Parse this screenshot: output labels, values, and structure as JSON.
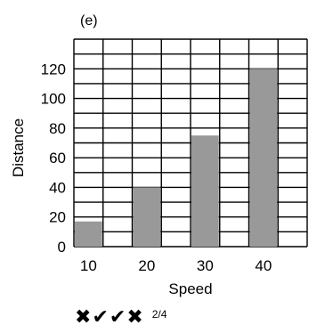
{
  "panel_label": "(e)",
  "chart_data": {
    "type": "bar",
    "categories": [
      "10",
      "20",
      "30",
      "40",
      ""
    ],
    "values": [
      17,
      40,
      75,
      120,
      null
    ],
    "xlabel": "Speed",
    "ylabel": "Distance",
    "ylim": [
      0,
      140
    ],
    "yticks": [
      0,
      20,
      40,
      60,
      80,
      100,
      120
    ],
    "bar_color": "#999999",
    "grid": true
  },
  "feedback": {
    "marks": [
      {
        "type": "cross",
        "glyph": "✖"
      },
      {
        "type": "check",
        "glyph": "✔"
      },
      {
        "type": "check",
        "glyph": "✔"
      },
      {
        "type": "cross",
        "glyph": "✖"
      }
    ],
    "score": "2/4"
  }
}
